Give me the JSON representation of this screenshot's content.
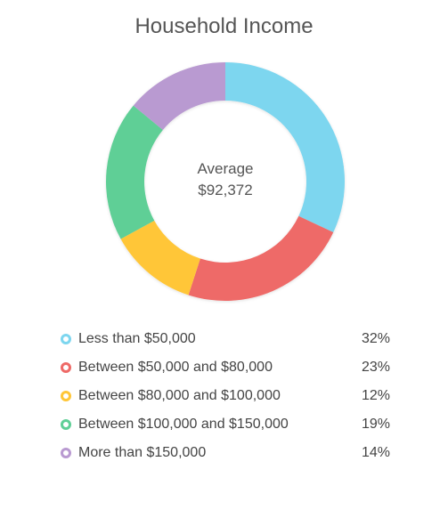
{
  "chart_data": {
    "type": "pie",
    "title": "Household Income",
    "center_label": "Average",
    "center_value": "$92,372",
    "categories": [
      "Less than $50,000",
      "Between $50,000 and $80,000",
      "Between $80,000 and $100,000",
      "Between $100,000 and $150,000",
      "More than $150,000"
    ],
    "values": [
      32,
      23,
      12,
      19,
      14
    ],
    "value_labels": [
      "32%",
      "23%",
      "12%",
      "19%",
      "14%"
    ],
    "colors": [
      "#7dd6ef",
      "#ee6a67",
      "#ffc637",
      "#5fcf96",
      "#b99ad1"
    ],
    "legend_position": "bottom"
  }
}
